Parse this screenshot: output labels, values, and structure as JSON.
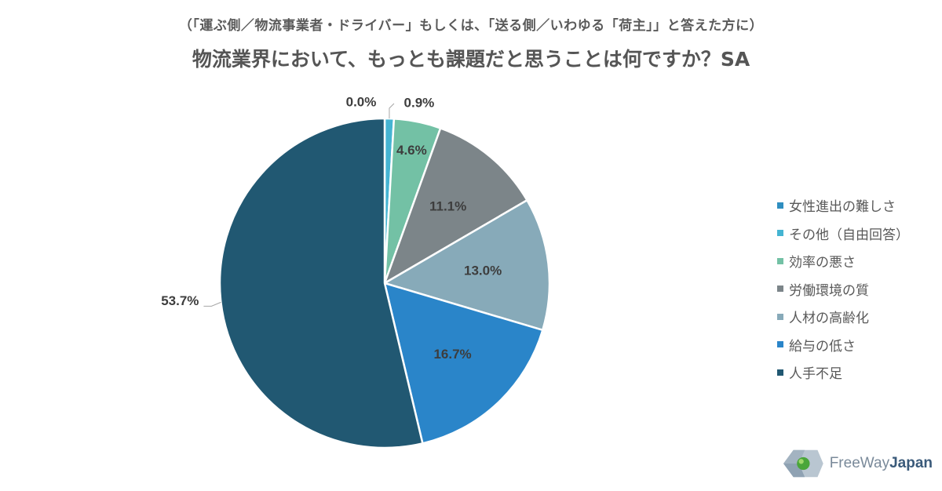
{
  "header": {
    "subtitle": "（「運ぶ側／物流事業者・ドライバー」もしくは、「送る側／いわゆる「荷主」」と答えた方に）",
    "title": "物流業界において、もっとも課題だと思うことは何ですか？SA"
  },
  "chart_data": {
    "type": "pie",
    "title": "物流業界において、もっとも課題だと思うことは何ですか？SA",
    "subtitle": "（「運ぶ側／物流事業者・ドライバー」もしくは、「送る側／いわゆる「荷主」」と答えた方に）",
    "legend_position": "right",
    "start": "12 o'clock",
    "direction": "clockwise",
    "slices": [
      {
        "label": "女性進出の難しさ",
        "value": 0.0,
        "value_label": "0.0%",
        "color": "#2f8ec0"
      },
      {
        "label": "その他（自由回答）",
        "value": 0.9,
        "value_label": "0.9%",
        "color": "#45b4d2"
      },
      {
        "label": "効率の悪さ",
        "value": 4.6,
        "value_label": "4.6%",
        "color": "#73c1a5"
      },
      {
        "label": "労働環境の質",
        "value": 11.1,
        "value_label": "11.1%",
        "color": "#7c8589"
      },
      {
        "label": "人材の高齢化",
        "value": 13.0,
        "value_label": "13.0%",
        "color": "#87aab9"
      },
      {
        "label": "給与の低さ",
        "value": 16.7,
        "value_label": "16.7%",
        "color": "#2a85c9"
      },
      {
        "label": "人手不足",
        "value": 53.7,
        "value_label": "53.7%",
        "color": "#215872"
      }
    ]
  },
  "logo": {
    "text_light": "FreeWay",
    "text_bold": "Japan"
  }
}
